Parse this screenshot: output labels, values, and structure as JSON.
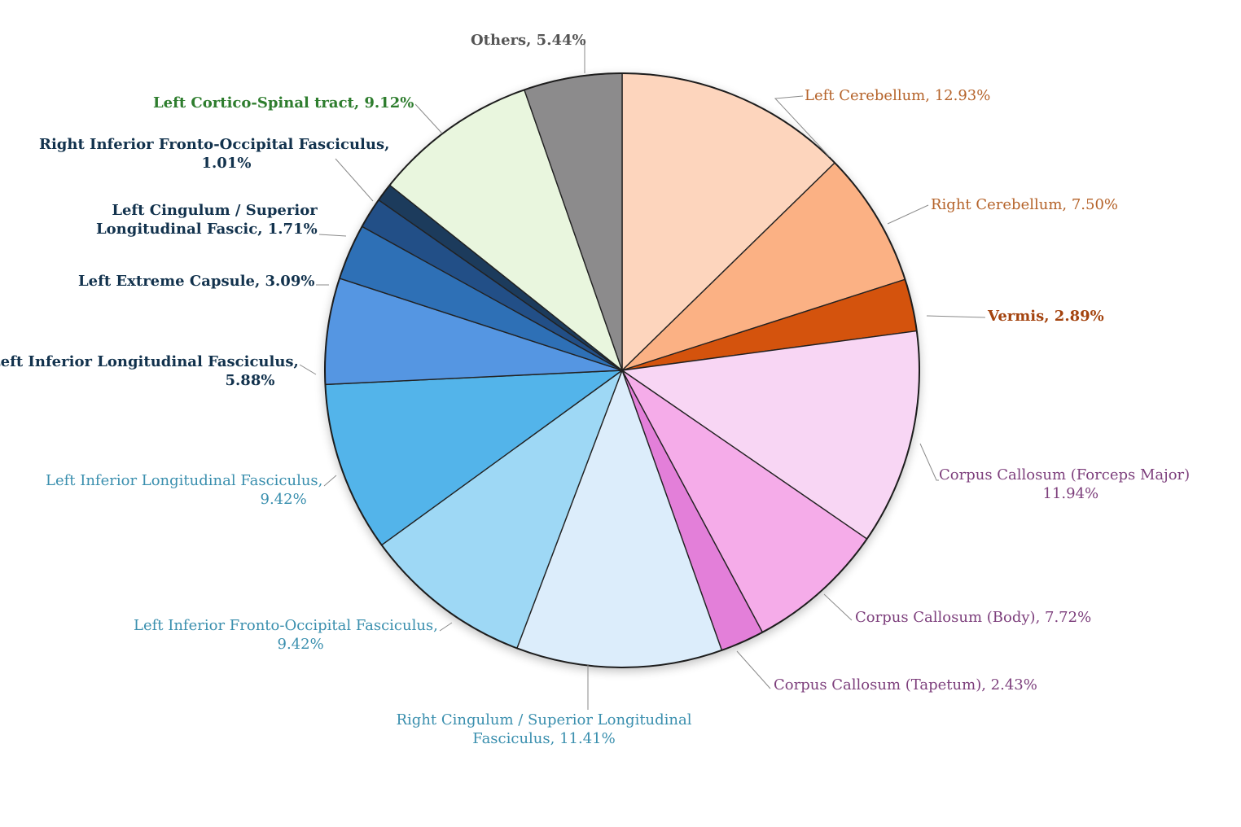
{
  "chart_data": {
    "type": "pie",
    "title": "",
    "start_angle_deg": 0,
    "direction": "clockwise",
    "slices": [
      {
        "key": "left-cerebellum",
        "lines": [
          "Left Cerebellum, 12.93%"
        ],
        "value": 12.93,
        "color": "#fdd5bd",
        "label_color": "#b5632a",
        "bold": false
      },
      {
        "key": "right-cerebellum",
        "lines": [
          "Right Cerebellum, 7.50%"
        ],
        "value": 7.5,
        "color": "#fbb184",
        "label_color": "#b5632a",
        "bold": false
      },
      {
        "key": "vermis",
        "lines": [
          "Vermis, 2.89%"
        ],
        "value": 2.89,
        "color": "#d4520f",
        "label_color": "#a4430e",
        "bold": true
      },
      {
        "key": "cc-forceps-major",
        "lines": [
          "Corpus Callosum (Forceps Major)",
          "11.94%"
        ],
        "value": 11.94,
        "color": "#f8d6f4",
        "label_color": "#7d3f7c",
        "bold": false
      },
      {
        "key": "cc-body",
        "lines": [
          "Corpus Callosum (Body), 7.72%"
        ],
        "value": 7.72,
        "color": "#f5ace9",
        "label_color": "#7d3f7c",
        "bold": false
      },
      {
        "key": "cc-tapetum",
        "lines": [
          "Corpus Callosum (Tapetum), 2.43%"
        ],
        "value": 2.43,
        "color": "#e37fd9",
        "label_color": "#7d3f7c",
        "bold": false
      },
      {
        "key": "right-cingulum-slf",
        "lines": [
          "Right Cingulum / Superior Longitudinal",
          "Fasciculus, 11.41%"
        ],
        "value": 11.41,
        "color": "#dcedfb",
        "label_color": "#3a8fae",
        "bold": false
      },
      {
        "key": "left-ifof",
        "lines": [
          "Left Inferior Fronto-Occipital Fasciculus,",
          "9.42%"
        ],
        "value": 9.42,
        "color": "#9ed8f5",
        "label_color": "#3a8fae",
        "bold": false
      },
      {
        "key": "left-ilf-light",
        "lines": [
          "Left Inferior Longitudinal Fasciculus,",
          "9.42%"
        ],
        "value": 9.42,
        "color": "#52b4ea",
        "label_color": "#3a8fae",
        "bold": false
      },
      {
        "key": "left-ilf-dark",
        "lines": [
          "Left Inferior Longitudinal Fasciculus,",
          "5.88%"
        ],
        "value": 5.88,
        "color": "#5596e2",
        "label_color": "#12324d",
        "bold": true
      },
      {
        "key": "left-extreme-capsule",
        "lines": [
          "Left Extreme Capsule, 3.09%"
        ],
        "value": 3.09,
        "color": "#2e6fb6",
        "label_color": "#12324d",
        "bold": true
      },
      {
        "key": "left-cingulum-slf",
        "lines": [
          "Left Cingulum / Superior",
          "Longitudinal Fascic, 1.71%"
        ],
        "value": 1.71,
        "color": "#234f87",
        "label_color": "#12324d",
        "bold": true
      },
      {
        "key": "right-ifof",
        "lines": [
          "Right Inferior Fronto-Occipital Fasciculus,",
          "1.01%"
        ],
        "value": 1.01,
        "color": "#1a3a5c",
        "label_color": "#12324d",
        "bold": true
      },
      {
        "key": "left-cst",
        "lines": [
          "Left Cortico-Spinal tract, 9.12%"
        ],
        "value": 9.12,
        "color": "#e9f6de",
        "label_color": "#2e7d2e",
        "bold": true
      },
      {
        "key": "others",
        "lines": [
          "Others, 5.44%"
        ],
        "value": 5.44,
        "color": "#8c8b8c",
        "label_color": "#555555",
        "bold": true
      }
    ]
  }
}
